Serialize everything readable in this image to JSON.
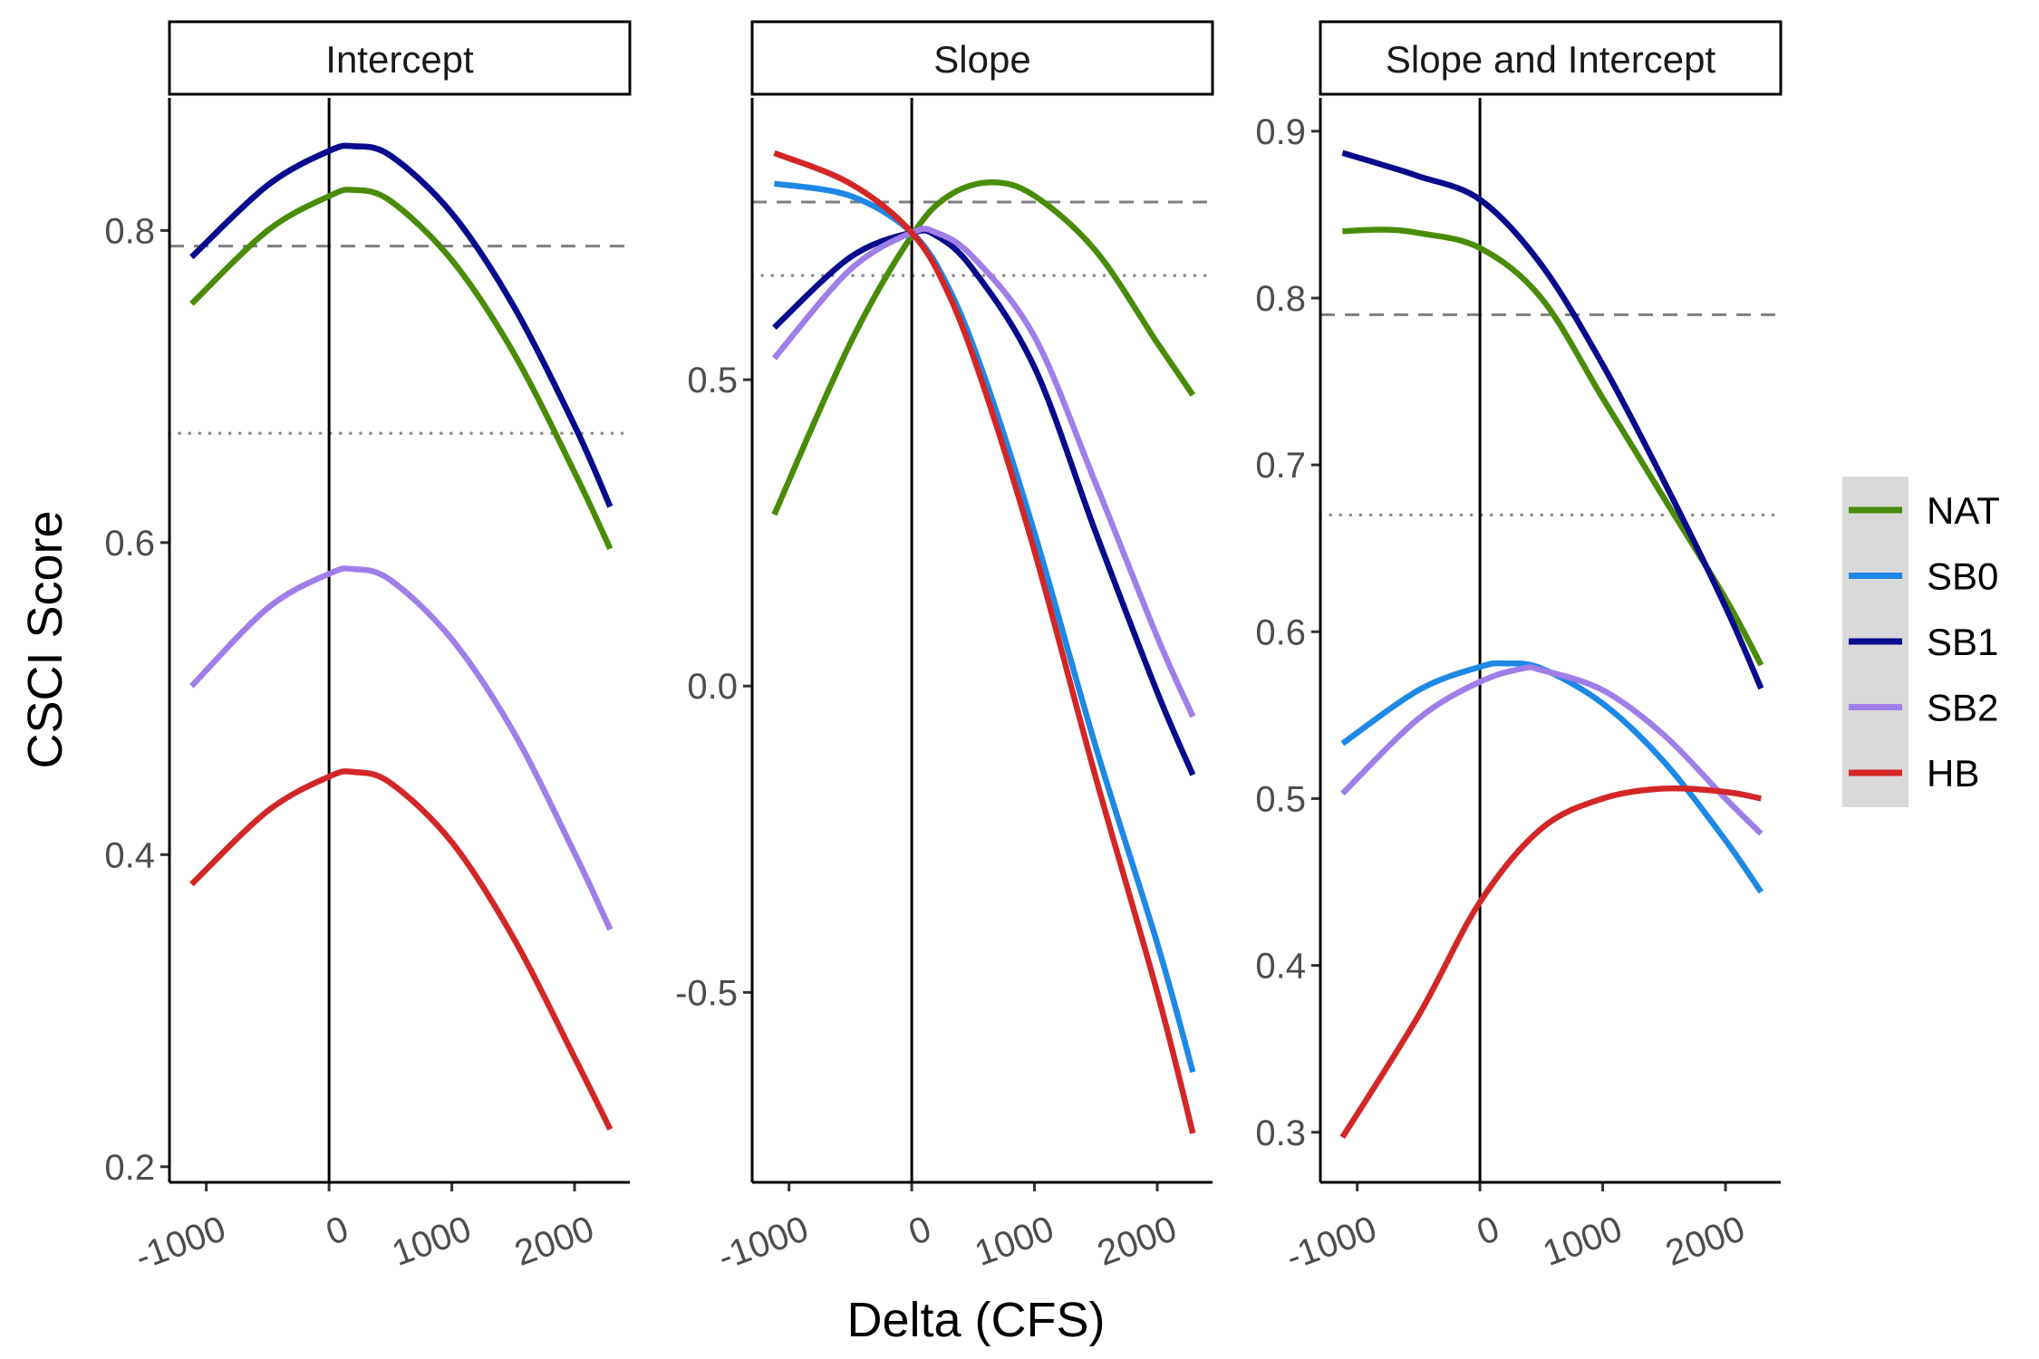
{
  "chart_data": {
    "type": "line",
    "xlabel": "Delta (CFS)",
    "ylabel": "CSCI Score",
    "x_ticks": [
      -1000,
      0,
      1000,
      2000
    ],
    "x_tick_labels": [
      "-1000",
      "0",
      "1000",
      "2000"
    ],
    "xlim": [
      -1300,
      2450
    ],
    "legend": {
      "placement": "right",
      "entries": [
        {
          "name": "NAT",
          "color": "#4a8c0a"
        },
        {
          "name": "SB0",
          "color": "#1e88e5"
        },
        {
          "name": "SB1",
          "color": "#0a0a8c"
        },
        {
          "name": "SB2",
          "color": "#a07ee8"
        },
        {
          "name": "HB",
          "color": "#d32727"
        }
      ]
    },
    "panels": [
      {
        "title": "Intercept",
        "ylim": [
          0.19,
          0.885
        ],
        "y_ticks": [
          0.2,
          0.4,
          0.6,
          0.8
        ],
        "y_tick_labels": [
          "0.2",
          "0.4",
          "0.6",
          "0.8"
        ],
        "hline_dashed": 0.79,
        "hline_dotted": 0.67,
        "series": [
          {
            "name": "NAT",
            "x": [
              -1120,
              -500,
              0,
              200,
              500,
              1000,
              1500,
              2000,
              2290
            ],
            "y": [
              0.753,
              0.8,
              0.822,
              0.826,
              0.819,
              0.781,
              0.722,
              0.645,
              0.596
            ]
          },
          {
            "name": "SB0",
            "x": [
              -1120,
              -500,
              0,
              200,
              500,
              1000,
              1500,
              2000,
              2290
            ],
            "y": [
              0.783,
              0.829,
              0.851,
              0.854,
              0.848,
              0.811,
              0.752,
              0.675,
              0.623
            ]
          },
          {
            "name": "SB1",
            "x": [
              -1120,
              -500,
              0,
              200,
              500,
              1000,
              1500,
              2000,
              2290
            ],
            "y": [
              0.783,
              0.829,
              0.851,
              0.854,
              0.848,
              0.811,
              0.752,
              0.675,
              0.623
            ]
          },
          {
            "name": "SB2",
            "x": [
              -1120,
              -500,
              0,
              200,
              500,
              1000,
              1500,
              2000,
              2290
            ],
            "y": [
              0.508,
              0.558,
              0.58,
              0.583,
              0.576,
              0.538,
              0.479,
              0.401,
              0.352
            ]
          },
          {
            "name": "HB",
            "x": [
              -1120,
              -500,
              0,
              200,
              500,
              1000,
              1500,
              2000,
              2290
            ],
            "y": [
              0.381,
              0.428,
              0.45,
              0.453,
              0.446,
              0.408,
              0.347,
              0.27,
              0.224
            ]
          }
        ]
      },
      {
        "title": "Slope",
        "ylim": [
          -0.81,
          0.96
        ],
        "y_ticks": [
          -0.5,
          0.0,
          0.5
        ],
        "y_tick_labels": [
          "-0.5",
          "0.0",
          "0.5"
        ],
        "hline_dashed": 0.79,
        "hline_dotted": 0.67,
        "series": [
          {
            "name": "NAT",
            "x": [
              -1120,
              -500,
              0,
              300,
              650,
              1000,
              1500,
              2000,
              2290
            ],
            "y": [
              0.28,
              0.56,
              0.735,
              0.8,
              0.822,
              0.8,
              0.71,
              0.56,
              0.475
            ]
          },
          {
            "name": "SB0",
            "x": [
              -1120,
              -500,
              0,
              300,
              600,
              1000,
              1500,
              2000,
              2290
            ],
            "y": [
              0.82,
              0.8,
              0.74,
              0.65,
              0.5,
              0.25,
              -0.1,
              -0.42,
              -0.63
            ]
          },
          {
            "name": "SB1",
            "x": [
              -1120,
              -500,
              0,
              200,
              500,
              1000,
              1500,
              2000,
              2290
            ],
            "y": [
              0.585,
              0.7,
              0.74,
              0.735,
              0.68,
              0.52,
              0.25,
              -0.01,
              -0.145
            ]
          },
          {
            "name": "SB2",
            "x": [
              -1120,
              -500,
              0,
              200,
              500,
              1000,
              1500,
              2000,
              2290
            ],
            "y": [
              0.535,
              0.68,
              0.74,
              0.74,
              0.7,
              0.57,
              0.33,
              0.08,
              -0.05
            ]
          },
          {
            "name": "HB",
            "x": [
              -1120,
              -500,
              0,
              300,
              600,
              1000,
              1500,
              2000,
              2290
            ],
            "y": [
              0.87,
              0.82,
              0.74,
              0.64,
              0.48,
              0.22,
              -0.15,
              -0.5,
              -0.73
            ]
          }
        ]
      },
      {
        "title": "Slope and Intercept",
        "ylim": [
          0.27,
          0.92
        ],
        "y_ticks": [
          0.3,
          0.4,
          0.5,
          0.6,
          0.7,
          0.8,
          0.9
        ],
        "y_tick_labels": [
          "0.3",
          "0.4",
          "0.5",
          "0.6",
          "0.7",
          "0.8",
          "0.9"
        ],
        "hline_dashed": 0.79,
        "hline_dotted": 0.67,
        "series": [
          {
            "name": "NAT",
            "x": [
              -1120,
              -800,
              -500,
              0,
              500,
              1000,
              1500,
              2000,
              2290
            ],
            "y": [
              0.84,
              0.841,
              0.839,
              0.83,
              0.8,
              0.74,
              0.68,
              0.62,
              0.58
            ]
          },
          {
            "name": "SB0",
            "x": [
              -1120,
              -500,
              0,
              200,
              500,
              1000,
              1500,
              2000,
              2290
            ],
            "y": [
              0.533,
              0.565,
              0.579,
              0.581,
              0.578,
              0.557,
              0.522,
              0.475,
              0.444
            ]
          },
          {
            "name": "SB1",
            "x": [
              -1120,
              -800,
              -500,
              0,
              500,
              1000,
              1500,
              2000,
              2290
            ],
            "y": [
              0.887,
              0.88,
              0.873,
              0.859,
              0.82,
              0.76,
              0.69,
              0.615,
              0.566
            ]
          },
          {
            "name": "SB2",
            "x": [
              -1120,
              -500,
              0,
              350,
              500,
              1000,
              1500,
              2000,
              2290
            ],
            "y": [
              0.503,
              0.548,
              0.57,
              0.578,
              0.577,
              0.565,
              0.538,
              0.5,
              0.479
            ]
          },
          {
            "name": "HB",
            "x": [
              -1120,
              -500,
              0,
              500,
              1000,
              1500,
              2000,
              2290
            ],
            "y": [
              0.297,
              0.37,
              0.438,
              0.482,
              0.5,
              0.506,
              0.504,
              0.5
            ]
          }
        ]
      }
    ]
  }
}
